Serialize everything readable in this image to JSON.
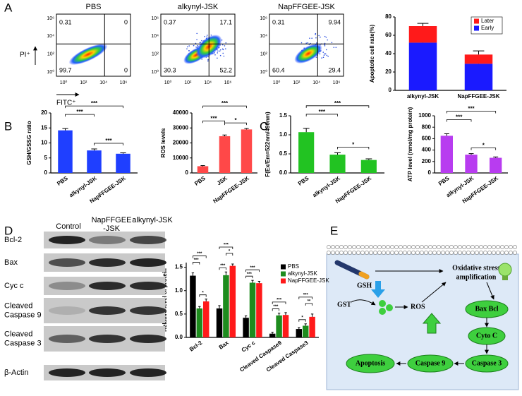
{
  "panel_labels": [
    "A",
    "B",
    "C",
    "D",
    "E"
  ],
  "flow": {
    "x_label": "FITC⁺",
    "y_label": "PI⁺",
    "ticks": [
      "10⁰",
      "10²",
      "10⁴",
      "10⁶"
    ],
    "plots": [
      {
        "title": "PBS",
        "quadrants": [
          0.31,
          0,
          99.7,
          0
        ]
      },
      {
        "title": "alkynyl-JSK",
        "quadrants": [
          0.37,
          17.1,
          30.3,
          52.2
        ]
      },
      {
        "title": "NapFFGEE-JSK",
        "quadrants": [
          0.31,
          9.94,
          60.4,
          29.4
        ]
      }
    ]
  },
  "chart_data": [
    {
      "type": "bar",
      "stacked": true,
      "categories": [
        "alkynyl-JSK",
        "NapFFGEE-JSK"
      ],
      "series": [
        {
          "name": "Early",
          "color": "#1a1aff",
          "values": [
            52,
            29
          ],
          "errors": [
            3,
            3
          ]
        },
        {
          "name": "Later",
          "color": "#ff1a1a",
          "values": [
            18,
            10
          ],
          "errors": [
            3,
            4
          ]
        }
      ],
      "y_label": "Apoptotic cell rate(%)",
      "ylim": [
        0,
        80
      ],
      "yticks": [
        0,
        20,
        40,
        60,
        80
      ],
      "legend": "upper right"
    },
    {
      "type": "bar",
      "categories": [
        "PBS",
        "alkynyl-JSK",
        "NapFFGEE-JSK"
      ],
      "values": [
        14.2,
        7.5,
        6.4
      ],
      "errors": [
        0.6,
        0.5,
        0.3
      ],
      "color": "#1f3fff",
      "y_label": "GSH/GSSG ratio",
      "ylim": [
        0,
        20
      ],
      "yticks": [
        0,
        5,
        10,
        15,
        20
      ],
      "significance": [
        {
          "pair": [
            "alkynyl-JSK",
            "NapFFGEE-JSK"
          ],
          "label": "***"
        },
        {
          "pair": [
            "PBS",
            "alkynyl-JSK"
          ],
          "label": "***"
        },
        {
          "pair": [
            "PBS",
            "NapFFGEE-JSK"
          ],
          "label": "***"
        }
      ]
    },
    {
      "type": "bar",
      "categories": [
        "PBS",
        "JSK",
        "NapFFGEE-JSK"
      ],
      "values": [
        4500,
        24500,
        29000
      ],
      "errors": [
        400,
        800,
        600
      ],
      "color": "#ff4848",
      "y_label": "ROS levels",
      "ylim": [
        0,
        40000
      ],
      "yticks": [
        0,
        10000,
        20000,
        30000,
        40000
      ],
      "significance": [
        {
          "pair": [
            "JSK",
            "NapFFGEE-JSK"
          ],
          "label": "*"
        },
        {
          "pair": [
            "PBS",
            "JSK"
          ],
          "label": "***"
        },
        {
          "pair": [
            "PBS",
            "NapFFGEE-JSK"
          ],
          "label": "***"
        }
      ]
    },
    {
      "type": "bar",
      "categories": [
        "PBS",
        "alkynyl-JSK",
        "NapFFGEE-JSK"
      ],
      "values": [
        1.07,
        0.48,
        0.34
      ],
      "errors": [
        0.1,
        0.05,
        0.03
      ],
      "color": "#22c322",
      "y_label": "F(Ex/Em=522nm/490nm)",
      "ylim": [
        0,
        1.5
      ],
      "yticks": [
        {
          "value": 0,
          "label": "0.0"
        },
        0.5,
        {
          "value": 1,
          "label": "1.0"
        },
        1.5
      ],
      "significance": [
        {
          "pair": [
            "alkynyl-JSK",
            "NapFFGEE-JSK"
          ],
          "label": "*"
        },
        {
          "pair": [
            "PBS",
            "alkynyl-JSK"
          ],
          "label": "***"
        },
        {
          "pair": [
            "PBS",
            "NapFFGEE-JSK"
          ],
          "label": "***"
        }
      ]
    },
    {
      "type": "bar",
      "categories": [
        "PBS",
        "alkynyl-JSK",
        "NapFFGEE-JSK"
      ],
      "values": [
        650,
        320,
        265
      ],
      "errors": [
        35,
        18,
        15
      ],
      "color": "#b83cf0",
      "y_label": "ATP level (nmol/mg protein)",
      "ylim": [
        0,
        1000
      ],
      "yticks": [
        0,
        200,
        400,
        600,
        800,
        1000
      ],
      "significance": [
        {
          "pair": [
            "alkynyl-JSK",
            "NapFFGEE-JSK"
          ],
          "label": "*"
        },
        {
          "pair": [
            "PBS",
            "alkynyl-JSK"
          ],
          "label": "***"
        },
        {
          "pair": [
            "PBS",
            "NapFFGEE-JSK"
          ],
          "label": "***"
        }
      ]
    },
    {
      "type": "bar",
      "categories": [
        "Bcl-2",
        "Bax",
        "Cyc c",
        "Cleaved Caspase9",
        "Cleaved Caspase3"
      ],
      "series": [
        {
          "name": "PBS",
          "color": "#000000",
          "values": [
            1.32,
            0.62,
            0.42,
            0.08,
            0.18
          ],
          "errors": [
            0.06,
            0.06,
            0.04,
            0.03,
            0.03
          ]
        },
        {
          "name": "alkynyl-JSK",
          "color": "#1e8c1e",
          "values": [
            0.62,
            1.33,
            1.17,
            0.47,
            0.25
          ],
          "errors": [
            0.04,
            0.07,
            0.05,
            0.05,
            0.04
          ]
        },
        {
          "name": "NapFFGEE-JSK",
          "color": "#ff1a1a",
          "values": [
            0.77,
            1.53,
            1.16,
            0.48,
            0.44
          ],
          "errors": [
            0.05,
            0.04,
            0.04,
            0.05,
            0.06
          ]
        }
      ],
      "y_label": "Relative level of protein",
      "ylim": [
        0,
        1.6
      ],
      "yticks": [
        {
          "value": 0,
          "label": "0.0"
        },
        0.5,
        {
          "value": 1,
          "label": "1.0"
        },
        1.5
      ],
      "legend": "upper right",
      "significance": [
        {
          "category": "Bcl-2",
          "pair": [
            "alkynyl-JSK",
            "NapFFGEE-JSK"
          ],
          "label": "*"
        },
        {
          "category": "Bcl-2",
          "pair": [
            "PBS",
            "alkynyl-JSK"
          ],
          "label": "***"
        },
        {
          "category": "Bcl-2",
          "pair": [
            "PBS",
            "NapFFGEE-JSK"
          ],
          "label": "***"
        },
        {
          "category": "Bax",
          "pair": [
            "PBS",
            "alkynyl-JSK"
          ],
          "label": "***"
        },
        {
          "category": "Bax",
          "pair": [
            "alkynyl-JSK",
            "NapFFGEE-JSK"
          ],
          "label": "*"
        },
        {
          "category": "Bax",
          "pair": [
            "PBS",
            "NapFFGEE-JSK"
          ],
          "label": "***"
        },
        {
          "category": "Cyc c",
          "pair": [
            "PBS",
            "alkynyl-JSK"
          ],
          "label": "***"
        },
        {
          "category": "Cyc c",
          "pair": [
            "PBS",
            "NapFFGEE-JSK"
          ],
          "label": "***"
        },
        {
          "category": "Cleaved Caspase9",
          "pair": [
            "PBS",
            "alkynyl-JSK"
          ],
          "label": "***"
        },
        {
          "category": "Cleaved Caspase9",
          "pair": [
            "PBS",
            "NapFFGEE-JSK"
          ],
          "label": "***"
        },
        {
          "category": "Cleaved Caspase3",
          "pair": [
            "PBS",
            "alkynyl-JSK"
          ],
          "label": "*"
        },
        {
          "category": "Cleaved Caspase3",
          "pair": [
            "alkynyl-JSK",
            "NapFFGEE-JSK"
          ],
          "label": "**"
        },
        {
          "category": "Cleaved Caspase3",
          "pair": [
            "PBS",
            "NapFFGEE-JSK"
          ],
          "label": "***"
        }
      ]
    }
  ],
  "blot": {
    "columns": [
      [
        "Control"
      ],
      [
        "NapFFGEE",
        "-JSK"
      ],
      [
        "alkynyl-JSK"
      ]
    ],
    "rows": [
      [
        "Bcl-2"
      ],
      [
        "Bax"
      ],
      [
        "Cyc c"
      ],
      [
        "Cleaved",
        "Caspase 9"
      ],
      [
        "Cleaved",
        "Caspase 3"
      ],
      [
        "β-Actin"
      ]
    ]
  },
  "diagram": {
    "gsh": "GSH",
    "gst": "GST",
    "ros": "ROS",
    "oxidative_stress": [
      "Oxidative stress",
      "amplification"
    ],
    "bax_bcl": "Bax  Bcl",
    "cyto_c": "Cyto C",
    "caspase3": "Caspase 3",
    "caspase9": "Caspase 9",
    "apoptosis": "Apoptosis"
  }
}
